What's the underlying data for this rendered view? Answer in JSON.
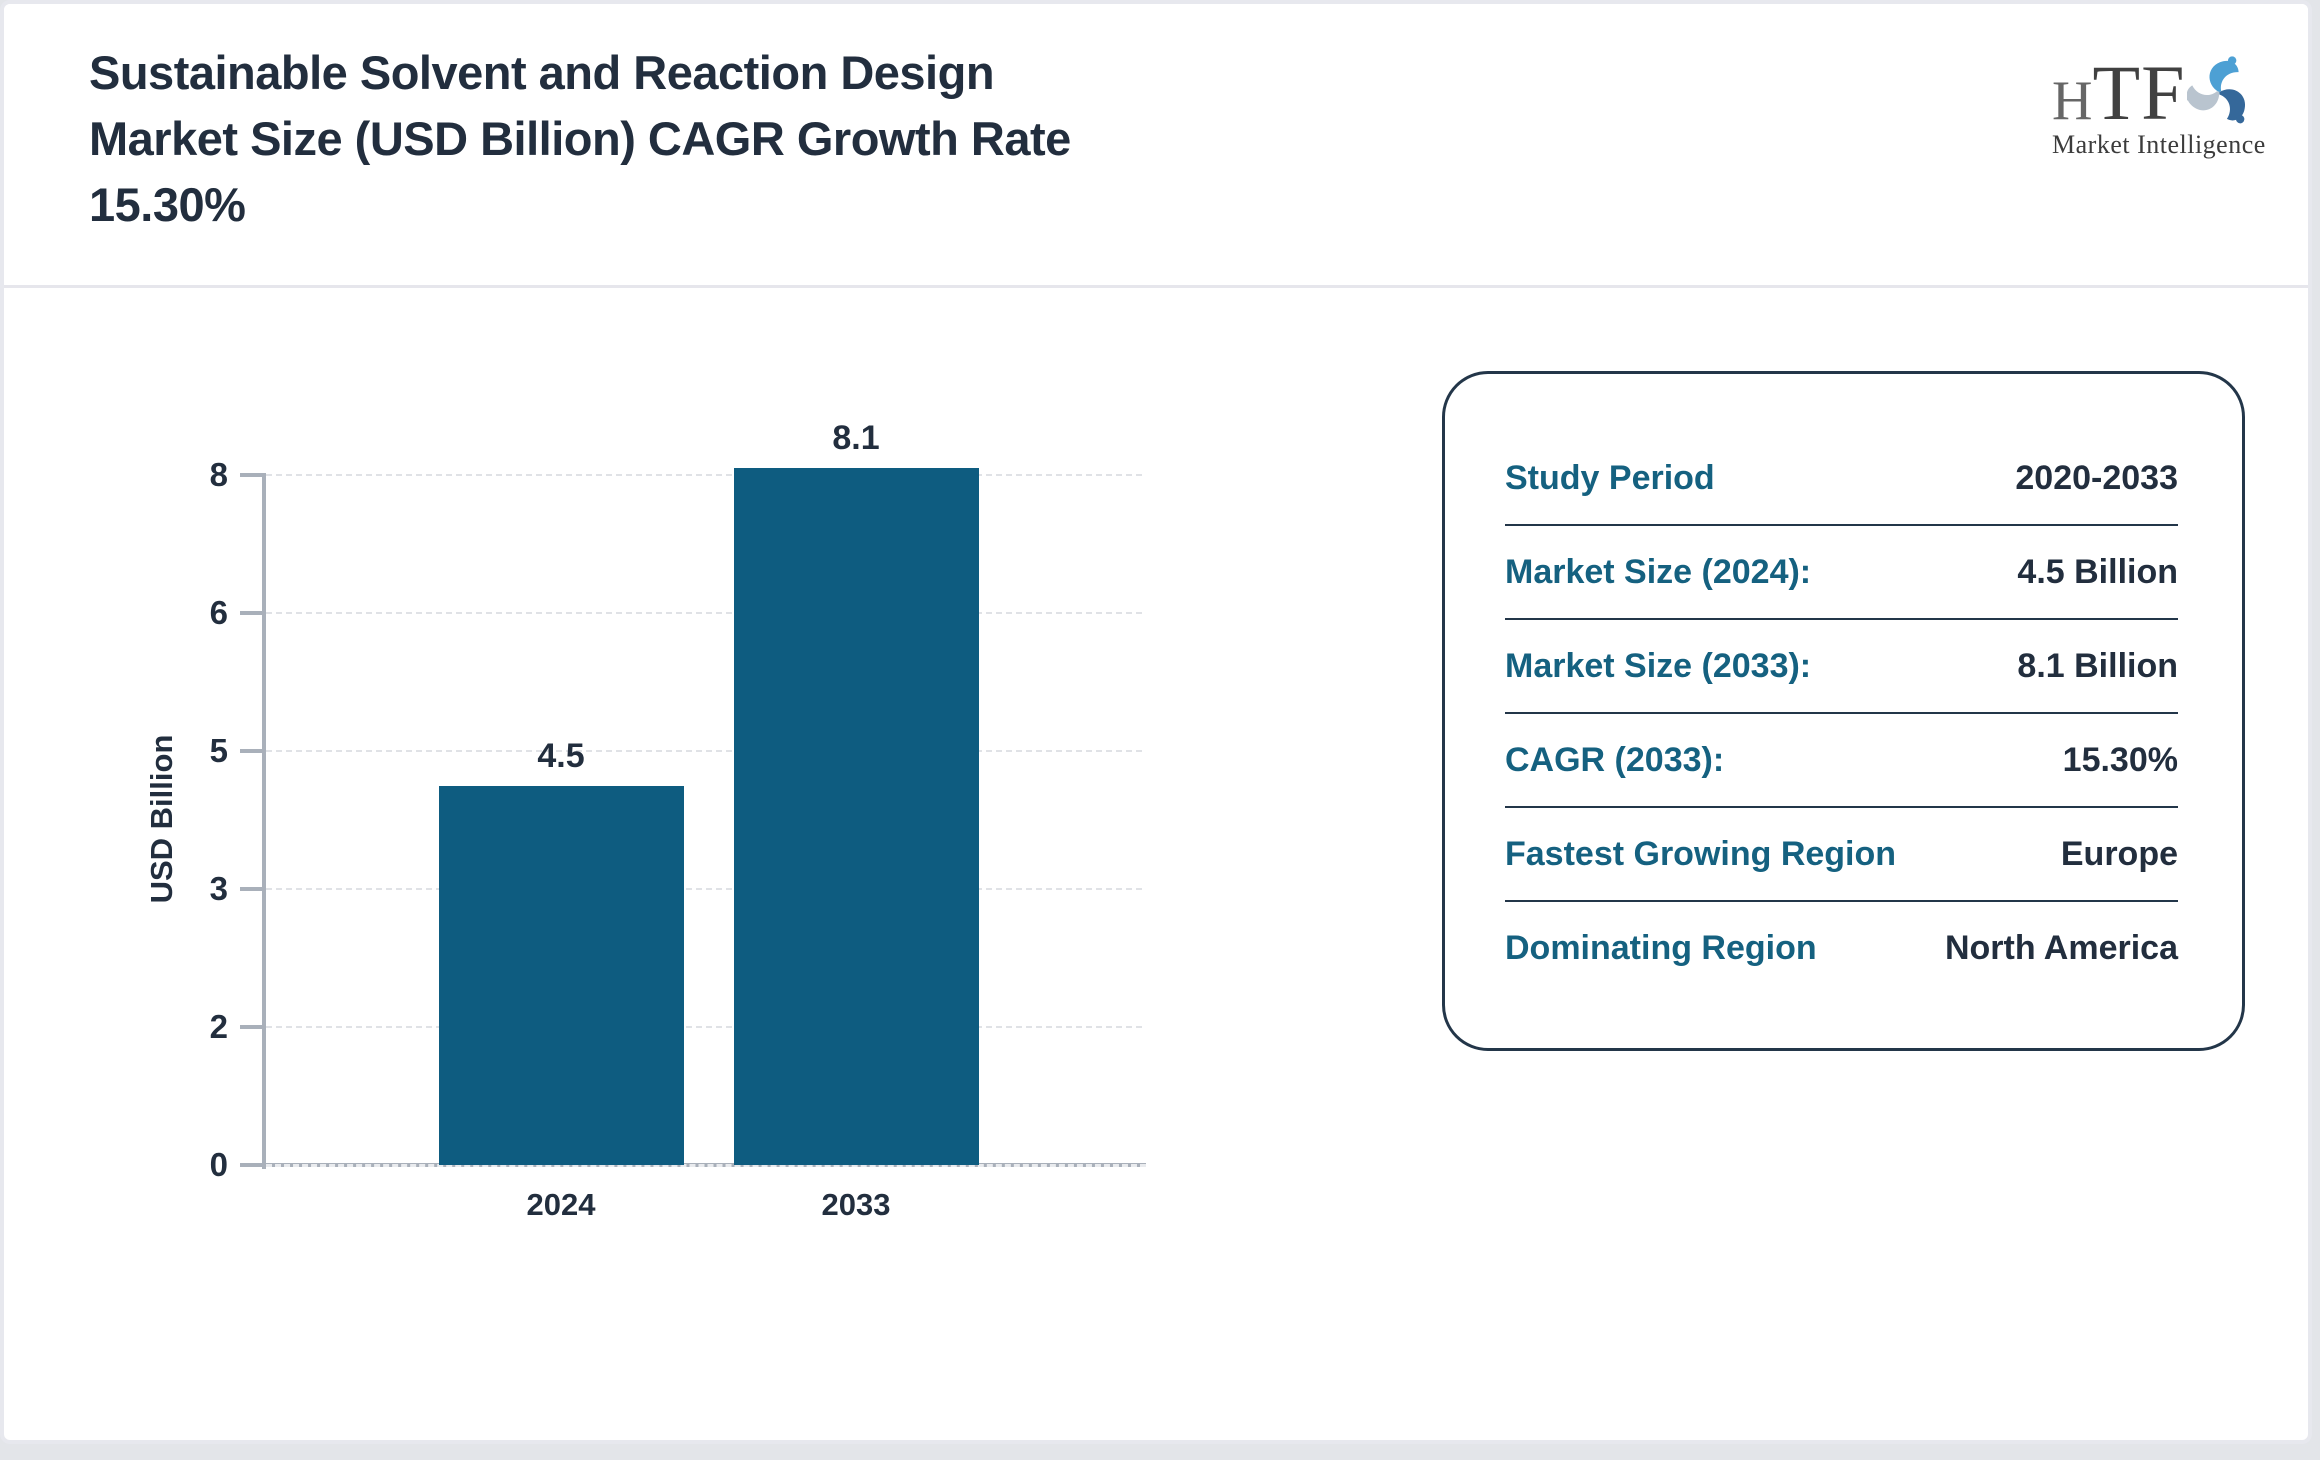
{
  "header": {
    "title": "Sustainable Solvent and Reaction Design\nMarket Size (USD Billion) CAGR Growth Rate\n15.30%",
    "logo": {
      "part1": "H",
      "part2": "TF",
      "subtitle": "Market Intelligence"
    }
  },
  "chart_data": {
    "type": "bar",
    "title": "Sustainable Solvent and Reaction Design Market Size (USD Billion)",
    "categories": [
      "2024",
      "2033"
    ],
    "values": [
      4.5,
      8.1
    ],
    "bar_labels": [
      "4.5",
      "8.1"
    ],
    "xlabel": "",
    "ylabel": "USD Billion",
    "yticks": [
      0,
      2,
      3,
      5,
      6,
      8
    ],
    "ytick_labels": [
      "0",
      "2",
      "3",
      "5",
      "6",
      "8"
    ],
    "grid": "horizontal-dashed",
    "legend": "none",
    "bar_color": "#0e5c80"
  },
  "summary_card": {
    "rows": [
      {
        "label": "Study Period",
        "value": "2020-2033"
      },
      {
        "label": "Market Size (2024):",
        "value": "4.5 Billion"
      },
      {
        "label": "Market Size (2033):",
        "value": "8.1 Billion"
      },
      {
        "label": "CAGR (2033):",
        "value": "15.30%"
      },
      {
        "label": "Fastest Growing Region",
        "value": "Europe"
      },
      {
        "label": "Dominating Region",
        "value": "North America"
      }
    ]
  },
  "colors": {
    "bar": "#0e5c80",
    "label_teal": "#156180",
    "text_dark": "#222e3e",
    "axis_gray": "#a9b0ba",
    "grid_gray": "#e0e2e6",
    "card_border": "#233649",
    "page_border": "#e7e8ee"
  }
}
